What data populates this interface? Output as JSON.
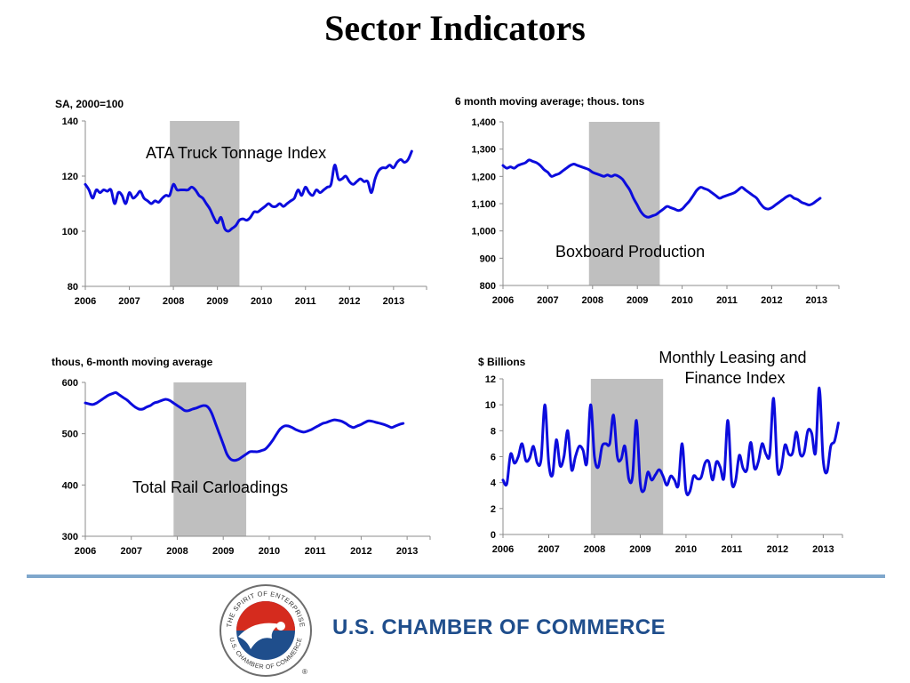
{
  "page": {
    "title": "Sector Indicators",
    "organization": "U.S. CHAMBER OF COMMERCE",
    "logo_text_top": "THE SPIRIT OF ENTERPRISE",
    "logo_text_bottom": "U.S. CHAMBER OF COMMERCE",
    "registered_mark": "®",
    "colors": {
      "line": "#0c0cdd",
      "recession": "#bfbfbf",
      "brand_blue": "#1f4e8c",
      "divider": "#7fa7cc",
      "logo_red": "#d52b1e"
    }
  },
  "chart_data": [
    {
      "id": "truck",
      "type": "line",
      "title": "ATA Truck Tonnage Index",
      "ylabel": "SA, 2000=100",
      "ylim": [
        80,
        140
      ],
      "yticks": [
        "140",
        "120",
        "100",
        "80"
      ],
      "ytick_values": [
        140,
        120,
        100,
        80
      ],
      "xlim": [
        2006.0,
        2013.75
      ],
      "xticks": [
        "2006",
        "2007",
        "2008",
        "2009",
        "2010",
        "2011",
        "2012",
        "2013"
      ],
      "recession": [
        2007.92,
        2009.5
      ],
      "x_start": 2006.0,
      "x_step": 0.0833,
      "values": [
        117,
        115,
        112,
        115,
        114,
        115,
        114.5,
        115,
        110,
        114,
        113,
        110,
        114,
        112,
        113,
        114.5,
        112,
        111,
        110,
        111,
        110.5,
        112,
        113,
        113,
        117,
        115,
        115,
        115,
        115,
        116,
        115,
        113,
        112,
        110,
        108,
        105,
        103,
        105,
        101,
        100,
        101,
        102,
        104,
        104.5,
        104,
        105,
        107,
        107,
        108,
        109,
        110,
        109,
        109,
        110,
        109,
        110,
        111,
        112,
        115,
        113,
        116,
        114,
        113,
        115,
        114,
        115,
        116,
        117,
        124,
        119,
        119,
        120,
        118,
        117,
        118,
        119,
        118,
        118,
        114,
        119,
        122,
        123,
        123,
        124,
        123,
        125,
        126,
        125,
        126,
        129
      ]
    },
    {
      "id": "boxboard",
      "type": "line",
      "title": "Boxboard Production",
      "ylabel": "6 month moving average; thous. tons",
      "ylim": [
        800,
        1400
      ],
      "yticks": [
        "1,400",
        "1,300",
        "1,200",
        "1,100",
        "1,000",
        "900",
        "800"
      ],
      "ytick_values": [
        1400,
        1300,
        1200,
        1100,
        1000,
        900,
        800
      ],
      "xlim": [
        2006.0,
        2013.5
      ],
      "xticks": [
        "2006",
        "2007",
        "2008",
        "2009",
        "2010",
        "2011",
        "2012",
        "2013"
      ],
      "recession": [
        2007.92,
        2009.5
      ],
      "x_start": 2006.0,
      "x_step": 0.0833,
      "values": [
        1240,
        1230,
        1235,
        1230,
        1240,
        1245,
        1250,
        1260,
        1255,
        1250,
        1240,
        1225,
        1215,
        1200,
        1205,
        1210,
        1220,
        1230,
        1240,
        1245,
        1240,
        1235,
        1230,
        1225,
        1215,
        1210,
        1205,
        1200,
        1205,
        1200,
        1205,
        1200,
        1190,
        1170,
        1150,
        1120,
        1095,
        1070,
        1055,
        1050,
        1055,
        1060,
        1070,
        1080,
        1090,
        1085,
        1080,
        1075,
        1080,
        1095,
        1110,
        1130,
        1150,
        1160,
        1155,
        1150,
        1140,
        1130,
        1120,
        1125,
        1130,
        1135,
        1140,
        1150,
        1160,
        1150,
        1140,
        1130,
        1120,
        1100,
        1085,
        1080,
        1085,
        1095,
        1105,
        1115,
        1125,
        1130,
        1120,
        1115,
        1105,
        1100,
        1095,
        1100,
        1110,
        1120
      ]
    },
    {
      "id": "rail",
      "type": "line",
      "title": "Total Rail Carloadings",
      "ylabel": "thous, 6-month moving average",
      "ylim": [
        300,
        600
      ],
      "yticks": [
        "600",
        "500",
        "400",
        "300"
      ],
      "ytick_values": [
        600,
        500,
        400,
        300
      ],
      "xlim": [
        2006.0,
        2013.5
      ],
      "xticks": [
        "2006",
        "2007",
        "2008",
        "2009",
        "2010",
        "2011",
        "2012",
        "2013"
      ],
      "recession": [
        2007.92,
        2009.5
      ],
      "x_start": 2006.0,
      "x_step": 0.0833,
      "values": [
        560,
        558,
        557,
        560,
        565,
        570,
        575,
        578,
        580,
        575,
        570,
        565,
        558,
        552,
        548,
        548,
        552,
        555,
        560,
        562,
        565,
        567,
        565,
        560,
        555,
        550,
        545,
        545,
        548,
        550,
        553,
        555,
        552,
        540,
        520,
        500,
        480,
        460,
        450,
        448,
        450,
        455,
        460,
        465,
        465,
        465,
        467,
        470,
        478,
        488,
        500,
        510,
        515,
        515,
        512,
        508,
        505,
        503,
        505,
        508,
        512,
        516,
        520,
        522,
        525,
        527,
        526,
        524,
        520,
        515,
        512,
        515,
        518,
        522,
        525,
        524,
        522,
        520,
        518,
        515,
        512,
        515,
        518,
        520
      ]
    },
    {
      "id": "leasing",
      "type": "line",
      "title": "Monthly Leasing and Finance Index",
      "ylabel": "$ Billions",
      "ylim": [
        0,
        12
      ],
      "yticks": [
        "12",
        "10",
        "8",
        "6",
        "4",
        "2",
        "0"
      ],
      "ytick_values": [
        12,
        10,
        8,
        6,
        4,
        2,
        0
      ],
      "xlim": [
        2006.0,
        2013.42
      ],
      "xticks": [
        "2006",
        "2007",
        "2008",
        "2009",
        "2010",
        "2011",
        "2012",
        "2013"
      ],
      "recession": [
        2007.92,
        2009.5
      ],
      "x_start": 2006.0,
      "x_step": 0.0833,
      "values": [
        4.2,
        3.9,
        6.2,
        5.5,
        6.0,
        7.0,
        5.7,
        5.9,
        6.8,
        5.5,
        5.8,
        10.0,
        5.5,
        4.6,
        7.3,
        5.3,
        6.0,
        8.0,
        5.0,
        6.0,
        6.8,
        6.5,
        5.5,
        10.0,
        6.0,
        5.2,
        6.8,
        7.0,
        7.0,
        9.2,
        6.0,
        5.8,
        6.8,
        4.3,
        4.5,
        8.8,
        4.0,
        3.4,
        4.8,
        4.2,
        4.6,
        5.0,
        4.5,
        3.8,
        4.5,
        4.2,
        3.8,
        7.0,
        3.4,
        3.3,
        4.5,
        4.3,
        4.4,
        5.5,
        5.6,
        4.2,
        5.6,
        5.2,
        4.4,
        8.8,
        4.1,
        4.1,
        6.1,
        5.1,
        5.0,
        7.1,
        5.1,
        5.6,
        7.0,
        6.2,
        6.2,
        10.5,
        5.1,
        5.1,
        6.9,
        6.2,
        6.3,
        7.9,
        6.2,
        6.3,
        8.0,
        7.8,
        6.3,
        11.3,
        5.8,
        4.8,
        6.8,
        7.2,
        8.6
      ]
    }
  ]
}
